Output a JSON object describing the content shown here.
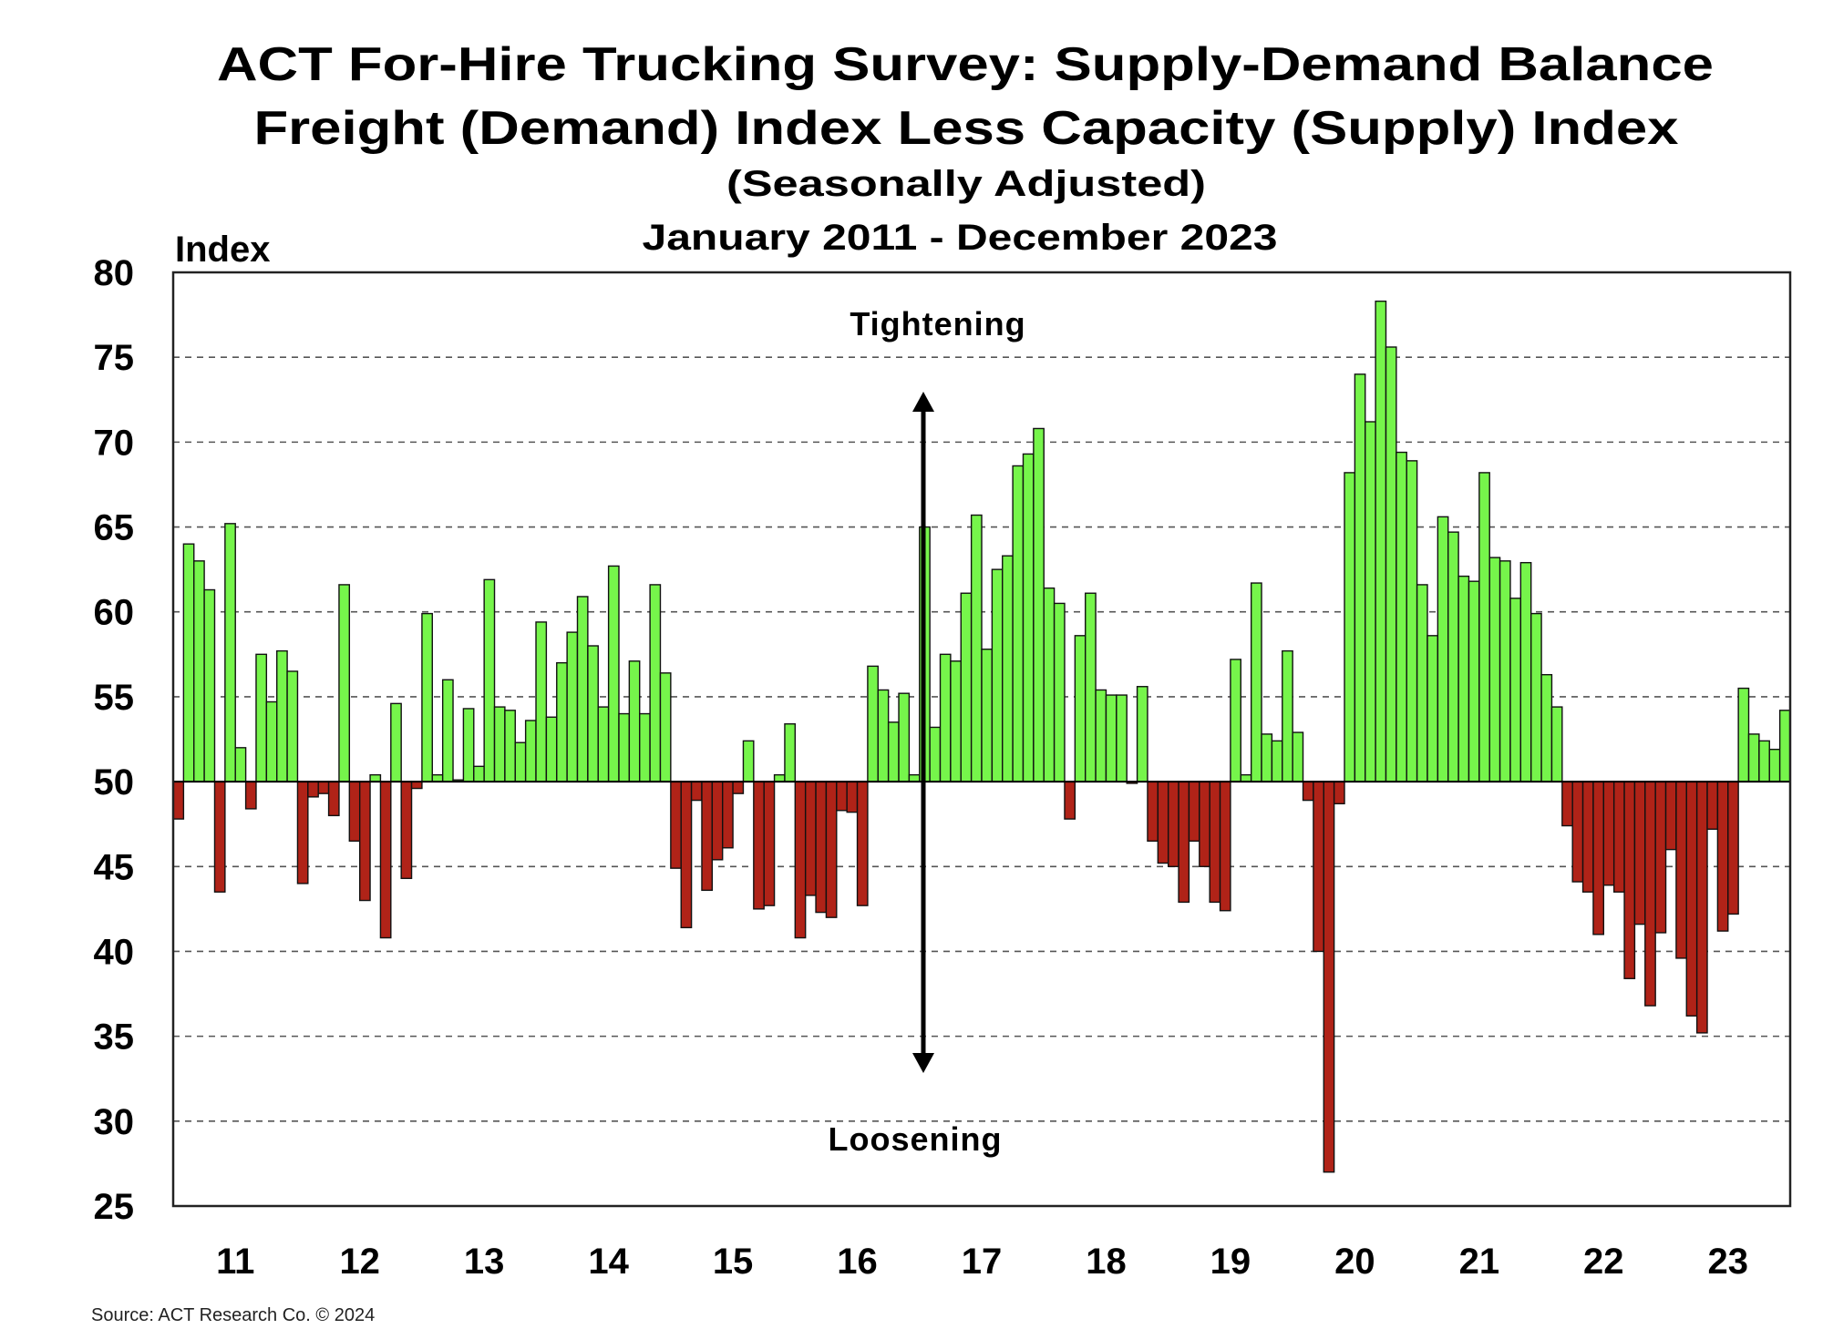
{
  "chart_data": {
    "type": "bar",
    "title": "ACT For-Hire Trucking Survey: Supply-Demand Balance",
    "subtitle": "Freight (Demand) Index Less Capacity (Supply) Index",
    "subtitle2": "(Seasonally Adjusted)",
    "date_range": "January 2011 - December 2023",
    "ylabel": "Index",
    "xlabel": "",
    "ylim": [
      25,
      80
    ],
    "yticks": [
      25,
      30,
      35,
      40,
      45,
      50,
      55,
      60,
      65,
      70,
      75,
      80
    ],
    "baseline": 50,
    "grid": true,
    "year_labels": [
      "11",
      "12",
      "13",
      "14",
      "15",
      "16",
      "17",
      "18",
      "19",
      "20",
      "21",
      "22",
      "23"
    ],
    "annotations": {
      "top": "Tightening",
      "bottom": "Loosening"
    },
    "colors": {
      "above": "#76f54b",
      "below": "#b02318",
      "outline": "#111111"
    },
    "frequency": "monthly",
    "values": [
      47.8,
      64.0,
      63.0,
      61.3,
      43.5,
      65.2,
      52.0,
      48.4,
      57.5,
      54.7,
      57.7,
      56.5,
      44.0,
      49.1,
      49.3,
      48.0,
      61.6,
      46.5,
      43.0,
      50.4,
      40.8,
      54.6,
      44.3,
      49.6,
      59.9,
      50.4,
      56.0,
      50.1,
      54.3,
      50.9,
      61.9,
      54.4,
      54.2,
      52.3,
      53.6,
      59.4,
      53.8,
      57.0,
      58.8,
      60.9,
      58.0,
      54.4,
      62.7,
      54.0,
      57.1,
      54.0,
      61.6,
      56.4,
      44.9,
      41.4,
      48.9,
      43.6,
      45.4,
      46.1,
      49.3,
      52.4,
      42.5,
      42.7,
      50.4,
      53.4,
      40.8,
      43.3,
      42.3,
      42.0,
      48.3,
      48.2,
      42.7,
      56.8,
      55.4,
      53.5,
      55.2,
      50.4,
      65.0,
      53.2,
      57.5,
      57.1,
      61.1,
      65.7,
      57.8,
      62.5,
      63.3,
      68.6,
      69.3,
      70.8,
      61.4,
      60.5,
      47.8,
      58.6,
      61.1,
      55.4,
      55.1,
      55.1,
      49.9,
      55.6,
      46.5,
      45.2,
      45.0,
      42.9,
      46.5,
      45.0,
      42.9,
      42.4,
      57.2,
      50.4,
      61.7,
      52.8,
      52.4,
      57.7,
      52.9,
      48.9,
      40.0,
      27.0,
      48.7,
      68.2,
      74.0,
      71.2,
      78.3,
      75.6,
      69.4,
      68.9,
      61.6,
      58.6,
      65.6,
      64.7,
      62.1,
      61.8,
      68.2,
      63.2,
      63.0,
      60.8,
      62.9,
      59.9,
      56.3,
      54.4,
      47.4,
      44.1,
      43.5,
      41.0,
      43.9,
      43.5,
      38.4,
      41.6,
      36.8,
      41.1,
      46.0,
      39.6,
      36.2,
      35.2,
      47.2,
      41.2,
      42.2,
      55.5,
      52.8,
      52.4,
      51.9,
      54.2
    ]
  },
  "source": "Source: ACT Research Co. © 2024"
}
